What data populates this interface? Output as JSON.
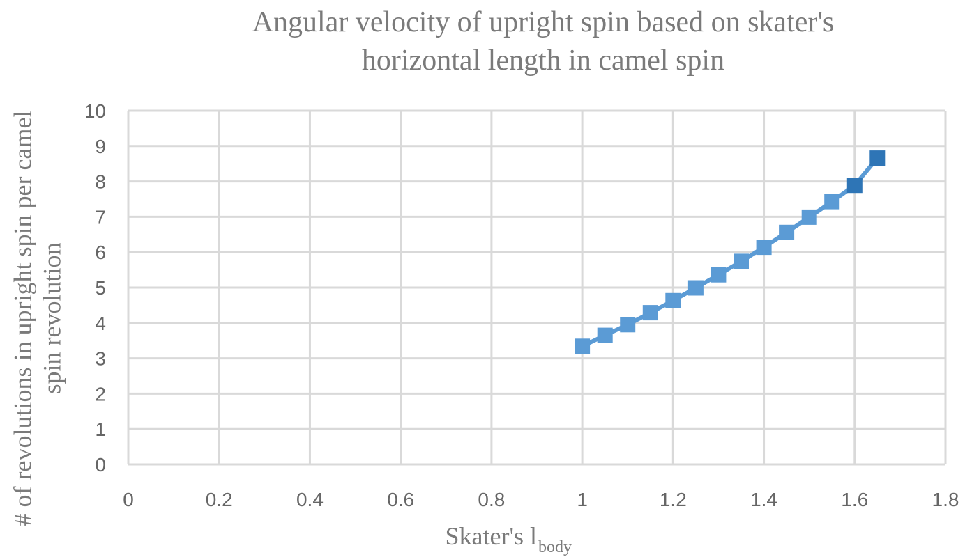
{
  "chart_data": {
    "type": "scatter",
    "title_lines": [
      "Angular velocity of upright spin based on skater's",
      "horizontal length in camel spin"
    ],
    "xlabel": "Skater's l",
    "xlabel_sub": "body",
    "ylabel_lines": [
      "# of revolutions in upright spin per camel",
      "spin revolution"
    ],
    "xlim": [
      0,
      1.8
    ],
    "ylim": [
      0,
      10
    ],
    "xticks": [
      "0",
      "0.2",
      "0.4",
      "0.6",
      "0.8",
      "1",
      "1.2",
      "1.4",
      "1.6",
      "1.8"
    ],
    "yticks": [
      "0",
      "1",
      "2",
      "3",
      "4",
      "5",
      "6",
      "7",
      "8",
      "9",
      "10"
    ],
    "grid": true,
    "series": [
      {
        "color": "#5b9bd5",
        "marker_color": "#5b9bd5",
        "highlight_color": "#2e75b6",
        "line": true,
        "marker": "square",
        "x": [
          1.0,
          1.05,
          1.1,
          1.15,
          1.2,
          1.25,
          1.3,
          1.35,
          1.4,
          1.45,
          1.5,
          1.55,
          1.6,
          1.65
        ],
        "y": [
          3.34,
          3.65,
          3.95,
          4.29,
          4.63,
          4.99,
          5.36,
          5.74,
          6.14,
          6.56,
          6.99,
          7.43,
          7.89,
          8.66
        ],
        "highlight_points": [
          12,
          13
        ]
      }
    ]
  }
}
